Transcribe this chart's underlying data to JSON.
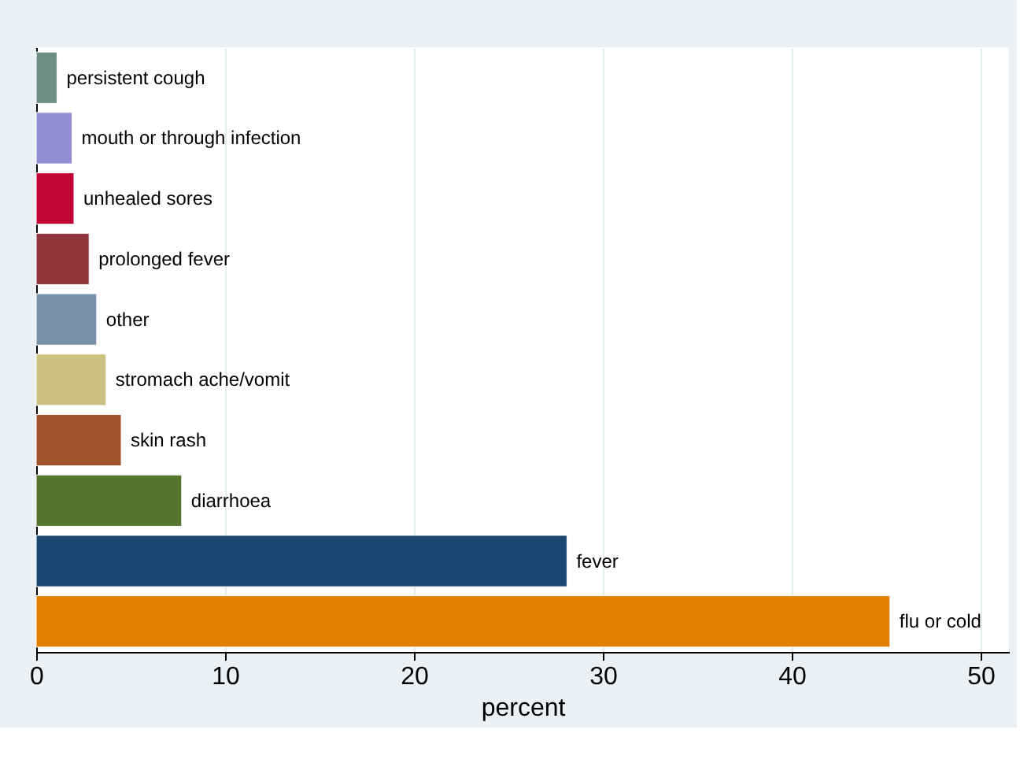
{
  "chart_data": {
    "type": "bar",
    "orientation": "horizontal",
    "xlabel": "percent",
    "categories": [
      "persistent cough",
      "mouth or through infection",
      "unhealed sores",
      "prolonged fever",
      "other",
      "stromach ache/vomit",
      "skin rash",
      "diarrhoea",
      "fever",
      "flu or cold"
    ],
    "values": [
      1.1,
      1.9,
      2.0,
      2.8,
      3.2,
      3.7,
      4.5,
      7.7,
      28.1,
      45.2
    ],
    "colors": [
      "#6e8e84",
      "#938dd2",
      "#c10534",
      "#90353b",
      "#7890a8",
      "#cac27e",
      "#a0522d",
      "#55752f",
      "#1a476f",
      "#e37e00"
    ],
    "xlim": [
      0,
      51.5
    ],
    "xticks": [
      0,
      10,
      20,
      30,
      40,
      50
    ],
    "grid": "x",
    "tick_labels": "x"
  }
}
